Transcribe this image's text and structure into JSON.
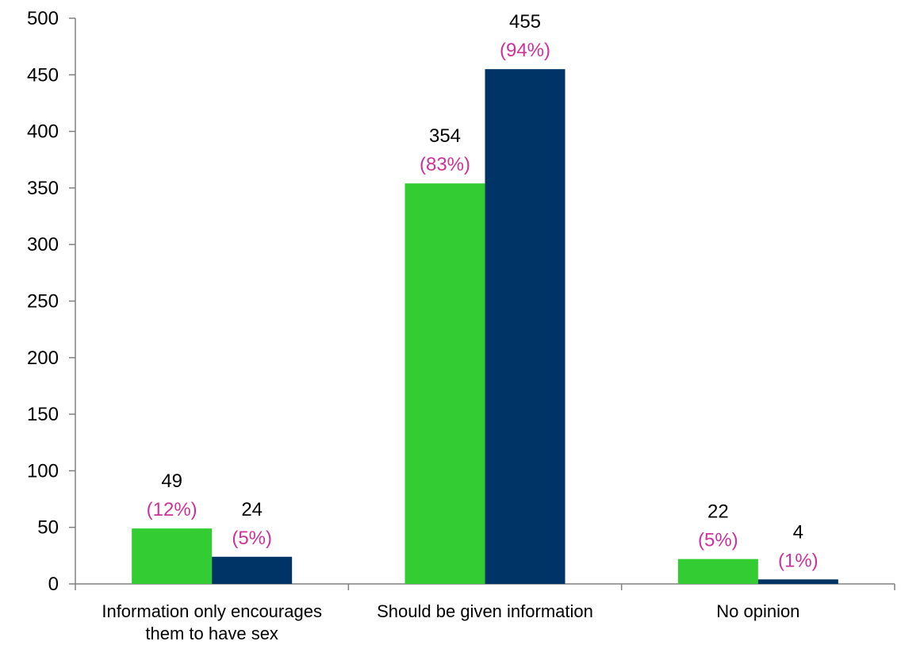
{
  "chart_data": {
    "type": "bar",
    "title": "",
    "xlabel": "",
    "ylabel": "",
    "ylim": [
      0,
      500
    ],
    "yticks": [
      0,
      50,
      100,
      150,
      200,
      250,
      300,
      350,
      400,
      450,
      500
    ],
    "grid": false,
    "legend": "none",
    "categories": [
      [
        "Information only encourages",
        "them to have sex"
      ],
      [
        "Should be given information"
      ],
      [
        "No opinion"
      ]
    ],
    "series": [
      {
        "color": "#33cc33",
        "values": [
          49,
          354,
          22
        ],
        "percent_labels": [
          "(12%)",
          "(83%)",
          "(5%)"
        ]
      },
      {
        "color": "#003366",
        "values": [
          24,
          455,
          4
        ],
        "percent_labels": [
          "(5%)",
          "(94%)",
          "(1%)"
        ]
      }
    ],
    "percent_label_color": "#cc3399",
    "axis_color": "#808080"
  }
}
